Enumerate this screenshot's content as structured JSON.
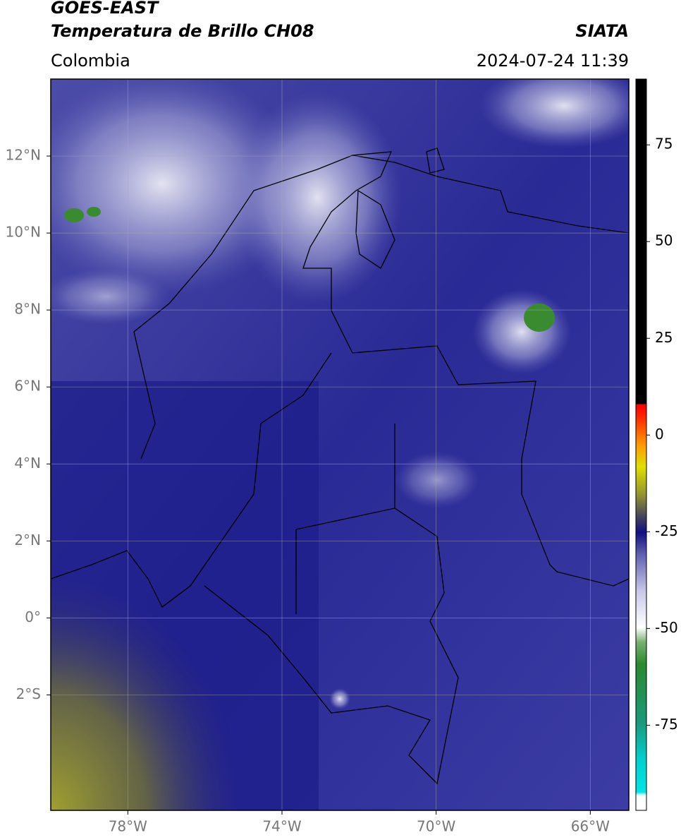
{
  "header": {
    "title": "GOES-EAST",
    "subtitle": "Temperatura de Brillo CH08",
    "source": "SIATA",
    "region": "Colombia",
    "timestamp": "2024-07-24 11:39"
  },
  "map": {
    "xlim": [
      -80,
      -65
    ],
    "ylim": [
      -5,
      14
    ],
    "xticks": [
      {
        "value": -78,
        "label": "78°W"
      },
      {
        "value": -74,
        "label": "74°W"
      },
      {
        "value": -70,
        "label": "70°W"
      },
      {
        "value": -66,
        "label": "66°W"
      }
    ],
    "yticks": [
      {
        "value": 12,
        "label": "12°N"
      },
      {
        "value": 10,
        "label": "10°N"
      },
      {
        "value": 8,
        "label": "8°N"
      },
      {
        "value": 6,
        "label": "6°N"
      },
      {
        "value": 4,
        "label": "4°N"
      },
      {
        "value": 2,
        "label": "2°N"
      },
      {
        "value": 0,
        "label": "0°"
      },
      {
        "value": -2,
        "label": "2°S"
      }
    ],
    "grid": true
  },
  "colorbar": {
    "ylim": [
      -97,
      92
    ],
    "yticks": [
      75,
      50,
      25,
      0,
      -25,
      -50,
      -75
    ]
  }
}
